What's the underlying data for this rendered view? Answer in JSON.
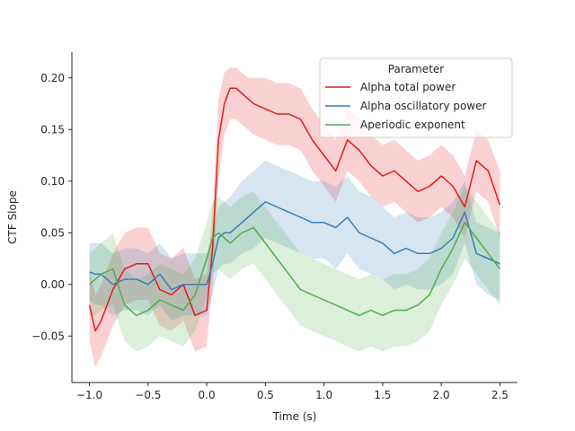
{
  "chart_data": {
    "type": "line",
    "title": "",
    "xlabel": "Time (s)",
    "ylabel": "CTF Slope",
    "xlim": [
      -1.15,
      2.65
    ],
    "ylim": [
      -0.095,
      0.225
    ],
    "xticks": [
      -1.0,
      -0.5,
      0.0,
      0.5,
      1.0,
      1.5,
      2.0,
      2.5
    ],
    "xtick_labels": [
      "−1.0",
      "−0.5",
      "0.0",
      "0.5",
      "1.0",
      "1.5",
      "2.0",
      "2.5"
    ],
    "yticks": [
      -0.05,
      0.0,
      0.05,
      0.1,
      0.15,
      0.2
    ],
    "ytick_labels": [
      "−0.05",
      "0.00",
      "0.05",
      "0.10",
      "0.15",
      "0.20"
    ],
    "grid": false,
    "legend": {
      "title": "Parameter",
      "placement": "top-right"
    },
    "series": [
      {
        "name": "Alpha total power",
        "color": "#e41a1c",
        "x": [
          -1.0,
          -0.95,
          -0.9,
          -0.8,
          -0.7,
          -0.6,
          -0.5,
          -0.4,
          -0.3,
          -0.2,
          -0.1,
          0.0,
          0.05,
          0.1,
          0.15,
          0.2,
          0.25,
          0.3,
          0.35,
          0.4,
          0.5,
          0.6,
          0.7,
          0.8,
          0.9,
          1.0,
          1.1,
          1.2,
          1.3,
          1.4,
          1.5,
          1.6,
          1.7,
          1.8,
          1.9,
          2.0,
          2.1,
          2.2,
          2.3,
          2.4,
          2.5
        ],
        "y": [
          -0.02,
          -0.045,
          -0.035,
          -0.005,
          0.015,
          0.02,
          0.02,
          -0.005,
          -0.01,
          0.0,
          -0.03,
          -0.025,
          0.035,
          0.14,
          0.175,
          0.19,
          0.19,
          0.185,
          0.18,
          0.175,
          0.17,
          0.165,
          0.165,
          0.16,
          0.14,
          0.125,
          0.11,
          0.14,
          0.13,
          0.115,
          0.105,
          0.11,
          0.1,
          0.09,
          0.095,
          0.105,
          0.095,
          0.075,
          0.12,
          0.11,
          0.077
        ],
        "lower": [
          -0.055,
          -0.08,
          -0.07,
          -0.04,
          -0.02,
          -0.015,
          -0.015,
          -0.04,
          -0.045,
          -0.035,
          -0.065,
          -0.06,
          0.0,
          0.1,
          0.145,
          0.16,
          0.16,
          0.155,
          0.15,
          0.145,
          0.14,
          0.135,
          0.135,
          0.13,
          0.11,
          0.095,
          0.08,
          0.11,
          0.1,
          0.085,
          0.075,
          0.08,
          0.07,
          0.06,
          0.065,
          0.075,
          0.065,
          0.045,
          0.09,
          0.08,
          0.045
        ],
        "upper": [
          0.015,
          -0.01,
          0.0,
          0.03,
          0.05,
          0.055,
          0.055,
          0.03,
          0.025,
          0.035,
          0.005,
          0.01,
          0.07,
          0.18,
          0.205,
          0.21,
          0.21,
          0.205,
          0.2,
          0.2,
          0.2,
          0.195,
          0.195,
          0.19,
          0.17,
          0.155,
          0.14,
          0.17,
          0.16,
          0.145,
          0.135,
          0.14,
          0.13,
          0.12,
          0.125,
          0.135,
          0.125,
          0.105,
          0.15,
          0.14,
          0.11
        ]
      },
      {
        "name": "Alpha oscillatory power",
        "color": "#377eb8",
        "x": [
          -1.0,
          -0.95,
          -0.9,
          -0.8,
          -0.7,
          -0.6,
          -0.5,
          -0.4,
          -0.3,
          -0.2,
          -0.1,
          0.0,
          0.05,
          0.1,
          0.15,
          0.2,
          0.3,
          0.4,
          0.5,
          0.6,
          0.7,
          0.8,
          0.9,
          1.0,
          1.1,
          1.2,
          1.3,
          1.4,
          1.5,
          1.6,
          1.7,
          1.8,
          1.9,
          2.0,
          2.1,
          2.2,
          2.3,
          2.4,
          2.5
        ],
        "y": [
          0.012,
          0.01,
          0.01,
          0.0,
          0.005,
          0.005,
          0.0,
          0.01,
          -0.005,
          0.0,
          0.0,
          0.0,
          0.02,
          0.045,
          0.05,
          0.05,
          0.06,
          0.07,
          0.08,
          0.075,
          0.07,
          0.065,
          0.06,
          0.06,
          0.055,
          0.065,
          0.05,
          0.045,
          0.04,
          0.03,
          0.035,
          0.03,
          0.03,
          0.035,
          0.045,
          0.07,
          0.03,
          0.025,
          0.02
        ],
        "lower": [
          -0.015,
          -0.02,
          -0.02,
          -0.03,
          -0.025,
          -0.025,
          -0.03,
          -0.02,
          -0.035,
          -0.03,
          -0.03,
          -0.03,
          -0.01,
          0.015,
          0.02,
          0.02,
          0.03,
          0.035,
          0.045,
          0.04,
          0.035,
          0.03,
          0.025,
          0.025,
          0.015,
          0.03,
          0.015,
          0.01,
          0.005,
          -0.005,
          0.0,
          -0.005,
          -0.005,
          0.0,
          0.01,
          0.04,
          0.0,
          -0.01,
          -0.015
        ],
        "upper": [
          0.04,
          0.04,
          0.04,
          0.03,
          0.035,
          0.035,
          0.03,
          0.04,
          0.025,
          0.03,
          0.03,
          0.03,
          0.05,
          0.075,
          0.08,
          0.085,
          0.1,
          0.11,
          0.12,
          0.115,
          0.11,
          0.105,
          0.1,
          0.1,
          0.095,
          0.105,
          0.09,
          0.085,
          0.075,
          0.065,
          0.07,
          0.065,
          0.065,
          0.07,
          0.08,
          0.1,
          0.06,
          0.055,
          0.05
        ]
      },
      {
        "name": "Aperiodic exponent",
        "color": "#4daf4a",
        "x": [
          -1.0,
          -0.95,
          -0.9,
          -0.8,
          -0.7,
          -0.6,
          -0.5,
          -0.4,
          -0.3,
          -0.2,
          -0.1,
          0.0,
          0.05,
          0.1,
          0.15,
          0.2,
          0.3,
          0.4,
          0.5,
          0.6,
          0.7,
          0.8,
          0.9,
          1.0,
          1.1,
          1.2,
          1.3,
          1.4,
          1.5,
          1.6,
          1.7,
          1.8,
          1.9,
          2.0,
          2.1,
          2.2,
          2.3,
          2.4,
          2.5
        ],
        "y": [
          0.0,
          0.005,
          0.01,
          0.015,
          -0.02,
          -0.03,
          -0.025,
          -0.015,
          -0.02,
          -0.025,
          -0.01,
          0.025,
          0.045,
          0.05,
          0.045,
          0.04,
          0.05,
          0.055,
          0.04,
          0.025,
          0.01,
          -0.005,
          -0.01,
          -0.015,
          -0.02,
          -0.025,
          -0.03,
          -0.025,
          -0.03,
          -0.025,
          -0.025,
          -0.02,
          -0.01,
          0.015,
          0.035,
          0.06,
          0.045,
          0.03,
          0.015
        ],
        "lower": [
          -0.03,
          -0.03,
          -0.025,
          -0.02,
          -0.055,
          -0.065,
          -0.06,
          -0.05,
          -0.055,
          -0.06,
          -0.045,
          -0.01,
          0.01,
          0.015,
          0.01,
          0.005,
          0.015,
          0.02,
          0.005,
          -0.01,
          -0.025,
          -0.04,
          -0.045,
          -0.05,
          -0.055,
          -0.06,
          -0.065,
          -0.06,
          -0.065,
          -0.06,
          -0.06,
          -0.055,
          -0.045,
          -0.02,
          0.0,
          0.025,
          0.01,
          -0.005,
          -0.02
        ],
        "upper": [
          0.03,
          0.035,
          0.04,
          0.05,
          0.015,
          0.005,
          0.01,
          0.02,
          0.015,
          0.01,
          0.025,
          0.06,
          0.08,
          0.085,
          0.08,
          0.075,
          0.085,
          0.09,
          0.075,
          0.06,
          0.045,
          0.03,
          0.025,
          0.02,
          0.015,
          0.01,
          0.005,
          0.01,
          0.005,
          0.01,
          0.01,
          0.015,
          0.025,
          0.05,
          0.07,
          0.095,
          0.08,
          0.065,
          0.05
        ]
      }
    ]
  }
}
